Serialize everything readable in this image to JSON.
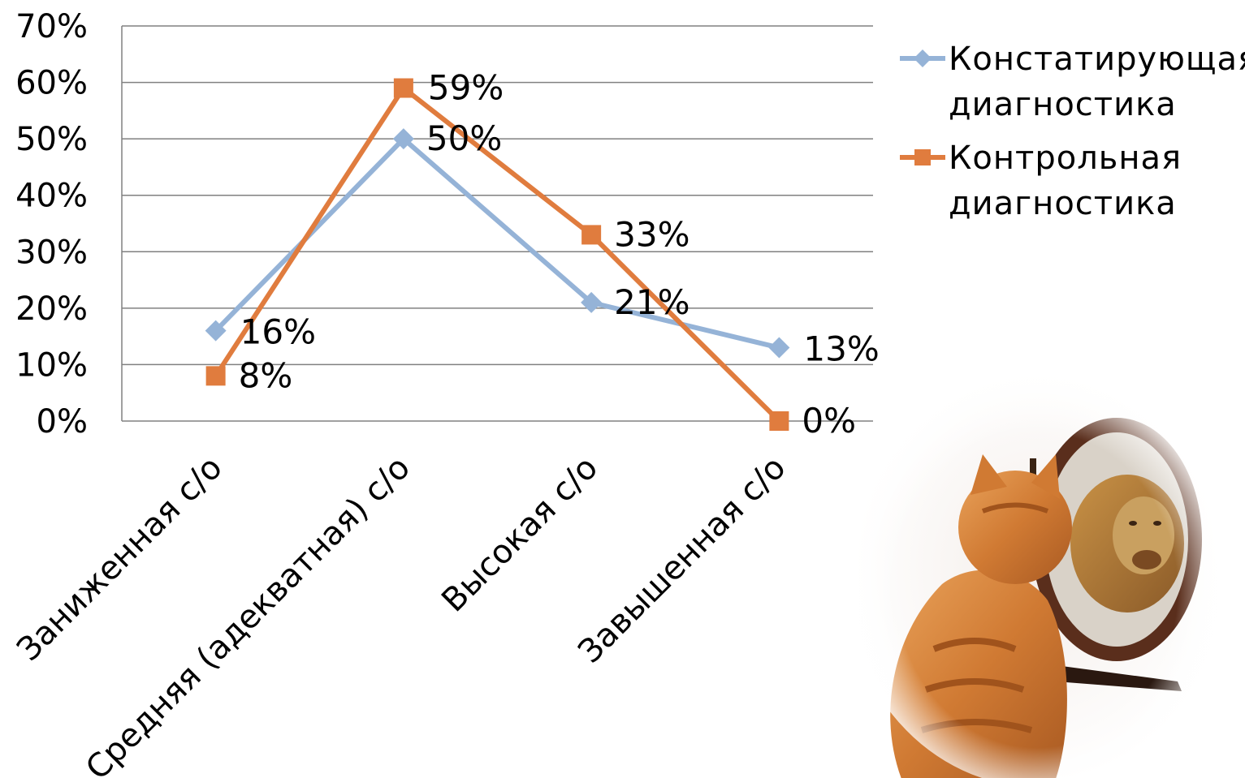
{
  "chart_data": {
    "type": "line",
    "categories": [
      "Заниженная с/о",
      "Средняя (адекватная) с/о",
      "Высокая с/о",
      "Завышенная с/о"
    ],
    "series": [
      {
        "name": "Констатирующая диагностика",
        "legend_lines": [
          "Констатирующая",
          "диагностика"
        ],
        "values": [
          16,
          50,
          21,
          13
        ],
        "labels": [
          "16%",
          "50%",
          "21%",
          "13%"
        ],
        "color": "#95b3d7",
        "marker": "diamond"
      },
      {
        "name": "Контрольная диагностика",
        "legend_lines": [
          "Контрольная",
          "диагностика"
        ],
        "values": [
          8,
          59,
          33,
          0
        ],
        "labels": [
          "8%",
          "59%",
          "33%",
          "0%"
        ],
        "color": "#e07c3e",
        "marker": "square"
      }
    ],
    "ylim": [
      0,
      70
    ],
    "yticks": [
      "0%",
      "10%",
      "20%",
      "30%",
      "40%",
      "50%",
      "60%",
      "70%"
    ],
    "grid": true,
    "legend": "right",
    "gridline_color": "#808080"
  },
  "illustration": {
    "icon": "kitten-mirror-lion-icon",
    "frame_color": "#5a2e1c",
    "fur_color": "#d98a3c",
    "lion_color": "#b8863a"
  }
}
